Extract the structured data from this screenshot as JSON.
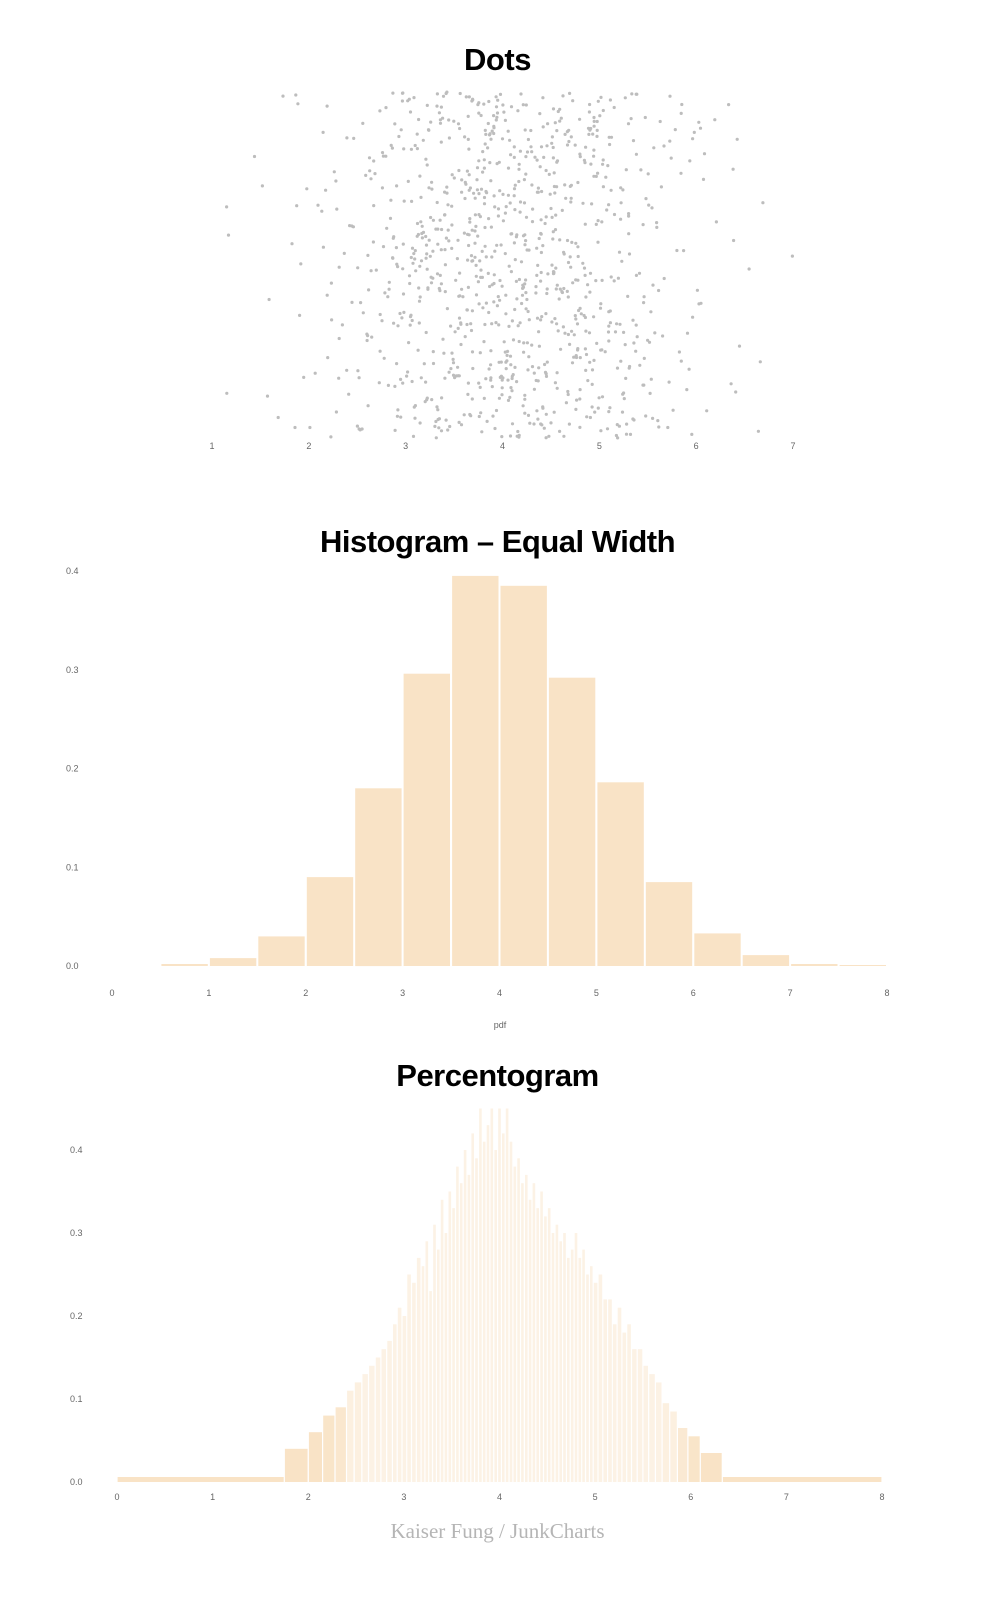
{
  "chart_data": [
    {
      "type": "scatter",
      "title": "Dots",
      "xlabel": "",
      "ylabel": "",
      "x_ticks": [
        "1",
        "2",
        "3",
        "4",
        "5",
        "6",
        "7"
      ],
      "xlim": [
        0.5,
        7.1
      ],
      "grid": false,
      "description": "Jittered strip/dot plot of ~1000 gray points, roughly normally distributed around 4 (sd ~1); y position is random jitter",
      "point_color": "#bdbdbd",
      "n_points_approx": 1000
    },
    {
      "type": "bar",
      "title": "Histogram – Equal Width",
      "xlabel": "pdf",
      "ylabel": "",
      "x_ticks": [
        "0",
        "1",
        "2",
        "3",
        "4",
        "5",
        "6",
        "7",
        "8"
      ],
      "y_ticks": [
        "0.0",
        "0.1",
        "0.2",
        "0.3",
        "0.4"
      ],
      "xlim": [
        0,
        8
      ],
      "ylim": [
        0,
        0.4
      ],
      "grid": false,
      "bin_width": 0.5,
      "bins": [
        {
          "x0": 0.5,
          "x1": 1.0,
          "y": 0.002
        },
        {
          "x0": 1.0,
          "x1": 1.5,
          "y": 0.008
        },
        {
          "x0": 1.5,
          "x1": 2.0,
          "y": 0.03
        },
        {
          "x0": 2.0,
          "x1": 2.5,
          "y": 0.09
        },
        {
          "x0": 2.5,
          "x1": 3.0,
          "y": 0.18
        },
        {
          "x0": 3.0,
          "x1": 3.5,
          "y": 0.296
        },
        {
          "x0": 3.5,
          "x1": 4.0,
          "y": 0.395
        },
        {
          "x0": 4.0,
          "x1": 4.5,
          "y": 0.385
        },
        {
          "x0": 4.5,
          "x1": 5.0,
          "y": 0.292
        },
        {
          "x0": 5.0,
          "x1": 5.5,
          "y": 0.186
        },
        {
          "x0": 5.5,
          "x1": 6.0,
          "y": 0.085
        },
        {
          "x0": 6.0,
          "x1": 6.5,
          "y": 0.033
        },
        {
          "x0": 6.5,
          "x1": 7.0,
          "y": 0.011
        },
        {
          "x0": 7.0,
          "x1": 7.5,
          "y": 0.002
        },
        {
          "x0": 7.5,
          "x1": 8.0,
          "y": 0.001
        }
      ],
      "bar_color": "#f9e3c6"
    },
    {
      "type": "bar",
      "title": "Percentogram",
      "xlabel": "",
      "ylabel": "",
      "x_ticks": [
        "0",
        "1",
        "2",
        "3",
        "4",
        "5",
        "6",
        "7",
        "8"
      ],
      "y_ticks": [
        "0.0",
        "0.1",
        "0.2",
        "0.3",
        "0.4"
      ],
      "xlim": [
        0,
        8
      ],
      "ylim": [
        0,
        0.45
      ],
      "grid": false,
      "description": "Variable-width histogram with 100 bins each holding 1% of data; narrow bars in center, wide bars in tails; bars become lighter where narrow",
      "bins": [
        {
          "x0": 0.0,
          "x1": 1.75,
          "y": 0.006
        },
        {
          "x0": 1.75,
          "x1": 2.0,
          "y": 0.04
        },
        {
          "x0": 2.0,
          "x1": 2.15,
          "y": 0.06
        },
        {
          "x0": 2.15,
          "x1": 2.28,
          "y": 0.08
        },
        {
          "x0": 2.28,
          "x1": 2.4,
          "y": 0.09
        },
        {
          "x0": 2.4,
          "x1": 2.48,
          "y": 0.11
        },
        {
          "x0": 2.48,
          "x1": 2.56,
          "y": 0.12
        },
        {
          "x0": 2.56,
          "x1": 2.63,
          "y": 0.13
        },
        {
          "x0": 2.63,
          "x1": 2.7,
          "y": 0.14
        },
        {
          "x0": 2.7,
          "x1": 2.76,
          "y": 0.15
        },
        {
          "x0": 2.76,
          "x1": 2.82,
          "y": 0.16
        },
        {
          "x0": 2.82,
          "x1": 2.88,
          "y": 0.17
        },
        {
          "x0": 2.88,
          "x1": 2.93,
          "y": 0.19
        },
        {
          "x0": 2.93,
          "x1": 2.98,
          "y": 0.21
        },
        {
          "x0": 2.98,
          "x1": 3.03,
          "y": 0.2
        },
        {
          "x0": 3.03,
          "x1": 3.08,
          "y": 0.25
        },
        {
          "x0": 3.08,
          "x1": 3.13,
          "y": 0.24
        },
        {
          "x0": 3.13,
          "x1": 3.18,
          "y": 0.27
        },
        {
          "x0": 3.18,
          "x1": 3.22,
          "y": 0.26
        },
        {
          "x0": 3.22,
          "x1": 3.26,
          "y": 0.29
        },
        {
          "x0": 3.26,
          "x1": 3.3,
          "y": 0.23
        },
        {
          "x0": 3.3,
          "x1": 3.34,
          "y": 0.31
        },
        {
          "x0": 3.34,
          "x1": 3.38,
          "y": 0.28
        },
        {
          "x0": 3.38,
          "x1": 3.42,
          "y": 0.34
        },
        {
          "x0": 3.42,
          "x1": 3.46,
          "y": 0.3
        },
        {
          "x0": 3.46,
          "x1": 3.5,
          "y": 0.35
        },
        {
          "x0": 3.5,
          "x1": 3.54,
          "y": 0.33
        },
        {
          "x0": 3.54,
          "x1": 3.58,
          "y": 0.38
        },
        {
          "x0": 3.58,
          "x1": 3.62,
          "y": 0.36
        },
        {
          "x0": 3.62,
          "x1": 3.66,
          "y": 0.4
        },
        {
          "x0": 3.66,
          "x1": 3.7,
          "y": 0.37
        },
        {
          "x0": 3.7,
          "x1": 3.74,
          "y": 0.42
        },
        {
          "x0": 3.74,
          "x1": 3.78,
          "y": 0.39
        },
        {
          "x0": 3.78,
          "x1": 3.82,
          "y": 0.45
        },
        {
          "x0": 3.82,
          "x1": 3.86,
          "y": 0.41
        },
        {
          "x0": 3.86,
          "x1": 3.9,
          "y": 0.43
        },
        {
          "x0": 3.9,
          "x1": 3.94,
          "y": 0.45
        },
        {
          "x0": 3.94,
          "x1": 3.98,
          "y": 0.4
        },
        {
          "x0": 3.98,
          "x1": 4.02,
          "y": 0.45
        },
        {
          "x0": 4.02,
          "x1": 4.06,
          "y": 0.42
        },
        {
          "x0": 4.06,
          "x1": 4.1,
          "y": 0.45
        },
        {
          "x0": 4.1,
          "x1": 4.14,
          "y": 0.41
        },
        {
          "x0": 4.14,
          "x1": 4.18,
          "y": 0.38
        },
        {
          "x0": 4.18,
          "x1": 4.22,
          "y": 0.39
        },
        {
          "x0": 4.22,
          "x1": 4.26,
          "y": 0.36
        },
        {
          "x0": 4.26,
          "x1": 4.3,
          "y": 0.37
        },
        {
          "x0": 4.3,
          "x1": 4.34,
          "y": 0.34
        },
        {
          "x0": 4.34,
          "x1": 4.38,
          "y": 0.36
        },
        {
          "x0": 4.38,
          "x1": 4.42,
          "y": 0.33
        },
        {
          "x0": 4.42,
          "x1": 4.46,
          "y": 0.35
        },
        {
          "x0": 4.46,
          "x1": 4.5,
          "y": 0.32
        },
        {
          "x0": 4.5,
          "x1": 4.54,
          "y": 0.33
        },
        {
          "x0": 4.54,
          "x1": 4.58,
          "y": 0.3
        },
        {
          "x0": 4.58,
          "x1": 4.62,
          "y": 0.31
        },
        {
          "x0": 4.62,
          "x1": 4.66,
          "y": 0.29
        },
        {
          "x0": 4.66,
          "x1": 4.7,
          "y": 0.3
        },
        {
          "x0": 4.7,
          "x1": 4.74,
          "y": 0.27
        },
        {
          "x0": 4.74,
          "x1": 4.78,
          "y": 0.28
        },
        {
          "x0": 4.78,
          "x1": 4.82,
          "y": 0.3
        },
        {
          "x0": 4.82,
          "x1": 4.86,
          "y": 0.27
        },
        {
          "x0": 4.86,
          "x1": 4.9,
          "y": 0.28
        },
        {
          "x0": 4.9,
          "x1": 4.94,
          "y": 0.25
        },
        {
          "x0": 4.94,
          "x1": 4.98,
          "y": 0.26
        },
        {
          "x0": 4.98,
          "x1": 5.03,
          "y": 0.24
        },
        {
          "x0": 5.03,
          "x1": 5.08,
          "y": 0.25
        },
        {
          "x0": 5.08,
          "x1": 5.13,
          "y": 0.22
        },
        {
          "x0": 5.13,
          "x1": 5.18,
          "y": 0.22
        },
        {
          "x0": 5.18,
          "x1": 5.23,
          "y": 0.19
        },
        {
          "x0": 5.23,
          "x1": 5.28,
          "y": 0.21
        },
        {
          "x0": 5.28,
          "x1": 5.33,
          "y": 0.18
        },
        {
          "x0": 5.33,
          "x1": 5.38,
          "y": 0.19
        },
        {
          "x0": 5.38,
          "x1": 5.44,
          "y": 0.16
        },
        {
          "x0": 5.44,
          "x1": 5.5,
          "y": 0.16
        },
        {
          "x0": 5.5,
          "x1": 5.56,
          "y": 0.14
        },
        {
          "x0": 5.56,
          "x1": 5.63,
          "y": 0.13
        },
        {
          "x0": 5.63,
          "x1": 5.7,
          "y": 0.12
        },
        {
          "x0": 5.7,
          "x1": 5.78,
          "y": 0.095
        },
        {
          "x0": 5.78,
          "x1": 5.86,
          "y": 0.085
        },
        {
          "x0": 5.86,
          "x1": 5.97,
          "y": 0.065
        },
        {
          "x0": 5.97,
          "x1": 6.1,
          "y": 0.055
        },
        {
          "x0": 6.1,
          "x1": 6.33,
          "y": 0.035
        },
        {
          "x0": 6.33,
          "x1": 8.0,
          "y": 0.006
        }
      ],
      "bar_color": "#f9e3c6"
    }
  ],
  "titles": {
    "dots": "Dots",
    "histogram": "Histogram – Equal Width",
    "percentogram": "Percentogram"
  },
  "axes": {
    "dots_x_ticks": [
      "1",
      "2",
      "3",
      "4",
      "5",
      "6",
      "7"
    ],
    "hist_x_ticks": [
      "0",
      "1",
      "2",
      "3",
      "4",
      "5",
      "6",
      "7",
      "8"
    ],
    "hist_y_ticks": [
      "0.0",
      "0.1",
      "0.2",
      "0.3",
      "0.4"
    ],
    "hist_xlabel": "pdf",
    "perc_x_ticks": [
      "0",
      "1",
      "2",
      "3",
      "4",
      "5",
      "6",
      "7",
      "8"
    ],
    "perc_y_ticks": [
      "0.0",
      "0.1",
      "0.2",
      "0.3",
      "0.4"
    ]
  },
  "colors": {
    "bar": "#f9e3c6",
    "dot": "#bdbdbd",
    "tick": "#666666",
    "credit": "#b5b5b5"
  },
  "credit": "Kaiser Fung / JunkCharts"
}
